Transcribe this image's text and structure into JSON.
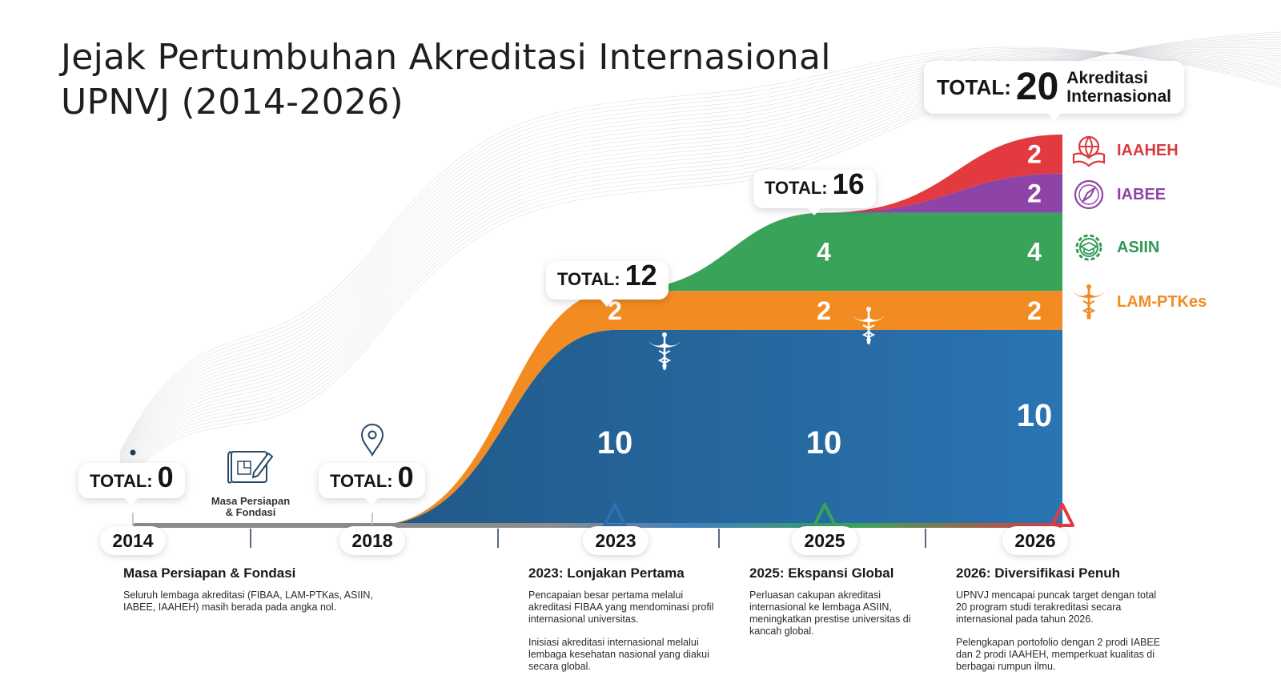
{
  "title": {
    "line1": "Jejak Pertumbuhan Akreditasi Internasional",
    "line2": "UPNVJ (2014-2026)"
  },
  "chart_data": {
    "type": "area",
    "stacked": true,
    "x": [
      "2014",
      "2018",
      "2023",
      "2025",
      "2026"
    ],
    "series": [
      {
        "name": "FIBAA",
        "color": "#1f5d92",
        "values": [
          0,
          0,
          10,
          10,
          10
        ]
      },
      {
        "name": "LAM-PTKes",
        "color": "#f28c22",
        "values": [
          0,
          0,
          2,
          2,
          2
        ]
      },
      {
        "name": "ASIIN",
        "color": "#3aa35a",
        "values": [
          0,
          0,
          0,
          4,
          4
        ]
      },
      {
        "name": "IABEE",
        "color": "#8e44a6",
        "values": [
          0,
          0,
          0,
          0,
          2
        ]
      },
      {
        "name": "IAAHEH",
        "color": "#e23a3f",
        "values": [
          0,
          0,
          0,
          0,
          2
        ]
      }
    ],
    "totals": [
      0,
      0,
      12,
      16,
      20
    ],
    "segment_labels": [
      {
        "year": "2023",
        "series": "FIBAA",
        "text": "10"
      },
      {
        "year": "2023",
        "series": "LAM-PTKes",
        "text": "2"
      },
      {
        "year": "2025",
        "series": "FIBAA",
        "text": "10"
      },
      {
        "year": "2025",
        "series": "LAM-PTKes",
        "text": "2"
      },
      {
        "year": "2025",
        "series": "ASIIN",
        "text": "4"
      },
      {
        "year": "2026",
        "series": "FIBAA",
        "text": "10"
      },
      {
        "year": "2026",
        "series": "LAM-PTKes",
        "text": "2"
      },
      {
        "year": "2026",
        "series": "ASIIN",
        "text": "4"
      },
      {
        "year": "2026",
        "series": "IABEE",
        "text": "2"
      },
      {
        "year": "2026",
        "series": "IAAHEH",
        "text": "2"
      }
    ],
    "marker_colors": {
      "2023": "#2f6fb0",
      "2025": "#3aa35a",
      "2026": "#e23a3f"
    },
    "axis_color": "#9a9a9a"
  },
  "callouts": {
    "c2014": {
      "label": "TOTAL:",
      "value": "0"
    },
    "c2018": {
      "label": "TOTAL:",
      "value": "0"
    },
    "c2023": {
      "label": "TOTAL:",
      "value": "12"
    },
    "c2025": {
      "label": "TOTAL:",
      "value": "16"
    },
    "c2026": {
      "label": "TOTAL:",
      "value": "20",
      "suffix1": "Akreditasi",
      "suffix2": "Internasional"
    }
  },
  "years": {
    "y2014": "2014",
    "y2018": "2018",
    "y2023": "2023",
    "y2025": "2025",
    "y2026": "2026"
  },
  "prep_icon": {
    "label1": "Masa Persiapan",
    "label2": "& Fondasi",
    "icon": "blueprint-pencil-icon"
  },
  "legend": [
    {
      "name": "IAAHEH",
      "color": "#d83a3f",
      "icon": "globe-book-icon"
    },
    {
      "name": "IABEE",
      "color": "#8e44a6",
      "icon": "compass-icon"
    },
    {
      "name": "ASIIN",
      "color": "#2f9a56",
      "icon": "gear-graduation-cap-icon"
    },
    {
      "name": "LAM-PTKes",
      "color": "#f28c22",
      "icon": "caduceus-icon"
    }
  ],
  "milestones": {
    "m1": {
      "title": "Masa Persiapan & Fondasi",
      "p1": "Seluruh lembaga akreditasi (FIBAA, LAM-PTKas, ASIIN, IABEE, IAAHEH) masih berada pada angka nol."
    },
    "m2": {
      "title": "2023: Lonjakan Pertama",
      "p1": "Pencapaian besar pertama melalui akreditasi FIBAA yang mendominasi profil internasional universitas.",
      "p2": "Inisiasi akreditasi internasional melalui lembaga kesehatan nasional yang diakui secara global."
    },
    "m3": {
      "title": "2025: Ekspansi Global",
      "p1": "Perluasan cakupan akreditasi internasional ke lembaga ASIIN, meningkatkan prestise universitas di kancah global."
    },
    "m4": {
      "title": "2026: Diversifikasi Penuh",
      "p1": "UPNVJ mencapai puncak target dengan total 20 program studi terakreditasi secara internasional pada tahun 2026.",
      "p2": "Pelengkapan portofolio dengan 2 prodi IABEE dan 2 prodi IAAHEH, memperkuat kualitas di berbagai rumpun ilmu."
    }
  }
}
